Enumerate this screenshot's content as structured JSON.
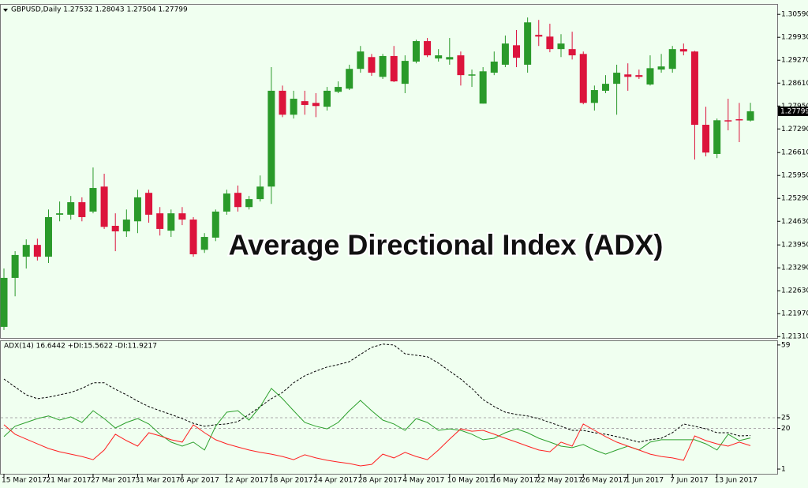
{
  "chart_data": {
    "type": "candlestick",
    "title": "GBPUSD,Daily  1.27532 1.28043 1.27504 1.27799",
    "overlay_title": "Average Directional Index (ADX)",
    "indicator_title": "ADX(14) 16.6442 +DI:15.5622 -DI:11.9217",
    "categories": [
      "15 Mar 2017",
      null,
      null,
      null,
      "21 Mar 2017",
      null,
      null,
      null,
      "27 Mar 2017",
      null,
      null,
      null,
      "31 Mar 2017",
      null,
      null,
      null,
      "6 Apr 2017",
      null,
      null,
      null,
      "12 Apr 2017",
      null,
      null,
      null,
      "18 Apr 2017",
      null,
      null,
      null,
      "24 Apr 2017",
      null,
      null,
      null,
      "28 Apr 2017",
      null,
      null,
      null,
      "4 May 2017",
      null,
      null,
      null,
      "10 May 2017",
      null,
      null,
      null,
      "16 May 2017",
      null,
      null,
      null,
      "22 May 2017",
      null,
      null,
      null,
      "26 May 2017",
      null,
      null,
      null,
      "1 Jun 2017",
      null,
      null,
      null,
      "7 Jun 2017",
      null,
      null,
      null,
      "13 Jun 2017",
      null,
      null,
      null
    ],
    "open": [
      1.2159,
      1.23,
      1.2361,
      1.2395,
      1.2361,
      1.2482,
      1.2482,
      1.2518,
      1.2491,
      1.2563,
      1.245,
      1.2434,
      1.2463,
      1.2545,
      1.2486,
      1.2436,
      1.2486,
      1.2468,
      1.2381,
      1.2416,
      1.2491,
      1.2545,
      1.2504,
      1.2527,
      1.2563,
      1.2839,
      1.277,
      1.2809,
      1.2804,
      1.2793,
      1.2836,
      1.2845,
      1.2902,
      1.2936,
      1.2879,
      1.2939,
      1.2859,
      1.2923,
      1.2982,
      1.2932,
      1.2929,
      1.2941,
      1.2884,
      1.2802,
      1.2891,
      1.2914,
      1.297,
      1.2914,
      1.3,
      1.2995,
      1.2959,
      1.2959,
      1.2945,
      1.2804,
      1.2839,
      1.2859,
      1.2886,
      1.2884,
      1.2857,
      1.29,
      1.2902,
      1.2959,
      1.2952,
      1.2741,
      1.2657,
      1.2754,
      1.2757,
      1.27532
    ],
    "high": [
      1.2327,
      1.2377,
      1.2411,
      1.2413,
      1.2497,
      1.252,
      1.2536,
      1.2532,
      1.2618,
      1.26,
      1.2486,
      1.2497,
      1.2554,
      1.2554,
      1.2504,
      1.2497,
      1.2504,
      1.2475,
      1.2429,
      1.2497,
      1.2554,
      1.2566,
      1.2536,
      1.2595,
      1.2907,
      1.2854,
      1.2839,
      1.2839,
      1.2832,
      1.285,
      1.2866,
      1.2914,
      1.2968,
      1.2945,
      1.2945,
      1.2968,
      1.2941,
      1.2986,
      1.2991,
      1.2959,
      1.2991,
      1.2952,
      1.29,
      1.2907,
      1.2952,
      1.2998,
      1.3014,
      1.305,
      1.3043,
      1.3032,
      1.3002,
      1.3009,
      1.2952,
      1.2854,
      1.2884,
      1.2914,
      1.2918,
      1.29,
      1.2941,
      1.2945,
      1.2968,
      1.2975,
      1.2954,
      1.2793,
      1.2759,
      1.2816,
      1.2804,
      1.28043
    ],
    "low": [
      1.215,
      1.2247,
      1.2327,
      1.235,
      1.2343,
      1.2463,
      1.2468,
      1.2463,
      1.2486,
      1.2441,
      1.2377,
      1.2418,
      1.2429,
      1.2459,
      1.2422,
      1.2418,
      1.2452,
      1.2361,
      1.2372,
      1.2406,
      1.2482,
      1.2491,
      1.2497,
      1.252,
      1.2513,
      1.2763,
      1.2759,
      1.277,
      1.2763,
      1.2782,
      1.2832,
      1.2841,
      1.2891,
      1.2882,
      1.2873,
      1.2864,
      1.2832,
      1.2918,
      1.2936,
      1.2923,
      1.2914,
      1.2854,
      1.285,
      1.2802,
      1.2884,
      1.2907,
      1.2907,
      1.2891,
      1.2968,
      1.295,
      1.2936,
      1.2929,
      1.28,
      1.2782,
      1.2832,
      1.277,
      1.2839,
      1.2873,
      1.2854,
      1.2891,
      1.2891,
      1.2941,
      1.2641,
      1.265,
      1.2645,
      1.2725,
      1.2691,
      1.27504
    ],
    "close": [
      1.23,
      1.2366,
      1.2395,
      1.2361,
      1.2475,
      1.2486,
      1.2518,
      1.2475,
      1.2559,
      1.2447,
      1.2434,
      1.2468,
      1.2532,
      1.2482,
      1.2441,
      1.2486,
      1.2468,
      1.2368,
      1.2418,
      1.2491,
      1.2543,
      1.2504,
      1.2527,
      1.2563,
      1.2839,
      1.277,
      1.2816,
      1.2798,
      1.2795,
      1.2839,
      1.285,
      1.2902,
      1.2952,
      1.2891,
      1.2939,
      1.2866,
      1.2925,
      1.2982,
      1.2941,
      1.2941,
      1.2936,
      1.2884,
      1.2886,
      1.2895,
      1.2923,
      1.2975,
      1.2934,
      1.3036,
      1.2995,
      1.2959,
      1.2975,
      1.2941,
      1.2804,
      1.2841,
      1.2859,
      1.2891,
      1.2879,
      1.2879,
      1.2904,
      1.2909,
      1.2959,
      1.2952,
      1.2741,
      1.2661,
      1.2754,
      1.2752,
      1.2754,
      1.27799
    ],
    "up_color": "#2a9a2a",
    "down_color": "#dc143c",
    "ylim": [
      1.2127,
      1.3089
    ],
    "yticks": [
      {
        "value": 1.3059,
        "label": "1.30590"
      },
      {
        "value": 1.2993,
        "label": "1.29930"
      },
      {
        "value": 1.2927,
        "label": "1.29270"
      },
      {
        "value": 1.2861,
        "label": "1.28610"
      },
      {
        "value": 1.2795,
        "label": "1.27950"
      },
      {
        "value": 1.2729,
        "label": "1.27290"
      },
      {
        "value": 1.2661,
        "label": "1.26610"
      },
      {
        "value": 1.2595,
        "label": "1.25950"
      },
      {
        "value": 1.2529,
        "label": "1.25290"
      },
      {
        "value": 1.2463,
        "label": "1.24630"
      },
      {
        "value": 1.2395,
        "label": "1.23950"
      },
      {
        "value": 1.2329,
        "label": "1.23290"
      },
      {
        "value": 1.2263,
        "label": "1.22630"
      },
      {
        "value": 1.2197,
        "label": "1.21970"
      },
      {
        "value": 1.2131,
        "label": "1.21310"
      }
    ],
    "y2lim": [
      -1.2,
      60.8
    ],
    "y2ticks": [
      59,
      25,
      20,
      1
    ],
    "levels": [
      25,
      20
    ],
    "series": [
      {
        "color": "#000000",
        "line_style": "dashed",
        "axis": "y2",
        "values": [
          43.1,
          39.4,
          35.7,
          33.9,
          34.6,
          35.7,
          36.8,
          38.7,
          41.3,
          41.3,
          38.3,
          35.7,
          32.8,
          30.2,
          28.3,
          26.5,
          24.6,
          22.4,
          21.0,
          21.7,
          22.1,
          23.2,
          26.5,
          30.2,
          33.9,
          36.8,
          41.3,
          44.6,
          46.8,
          48.7,
          49.8,
          51.2,
          54.6,
          57.9,
          59.4,
          59.0,
          54.9,
          54.2,
          53.5,
          50.5,
          46.8,
          43.1,
          38.7,
          33.5,
          30.2,
          27.6,
          26.5,
          25.8,
          24.6,
          22.8,
          21.0,
          19.1,
          19.1,
          18.0,
          17.3,
          16.2,
          15.0,
          13.6,
          14.7,
          15.4,
          18.0,
          22.1,
          21.0,
          19.8,
          18.0,
          18.0,
          16.5,
          16.6442
        ]
      },
      {
        "color": "#2ca02c",
        "line_style": "solid",
        "axis": "y2",
        "values": [
          16.2,
          21.0,
          22.8,
          24.6,
          25.8,
          23.9,
          25.4,
          22.8,
          28.3,
          24.6,
          20.2,
          22.8,
          24.6,
          22.1,
          17.3,
          13.6,
          11.7,
          13.6,
          9.9,
          21.0,
          27.6,
          28.3,
          23.9,
          30.2,
          38.7,
          33.9,
          28.3,
          22.8,
          21.0,
          19.8,
          22.8,
          28.3,
          33.1,
          28.3,
          23.9,
          22.1,
          19.1,
          24.6,
          22.8,
          19.1,
          19.8,
          19.1,
          17.3,
          14.7,
          15.4,
          18.0,
          19.8,
          18.0,
          15.4,
          13.6,
          11.7,
          11.0,
          12.5,
          9.9,
          8.0,
          9.9,
          11.7,
          9.9,
          13.6,
          14.7,
          14.7,
          14.7,
          14.7,
          12.8,
          9.9,
          17.3,
          14.3,
          15.5622
        ]
      },
      {
        "color": "#ff2020",
        "line_style": "solid",
        "axis": "y2",
        "values": [
          21.7,
          17.3,
          15.0,
          12.8,
          10.6,
          9.1,
          8.0,
          6.9,
          5.4,
          9.9,
          17.3,
          14.3,
          11.7,
          18.0,
          16.5,
          14.7,
          13.6,
          21.7,
          18.0,
          14.7,
          12.8,
          11.3,
          9.9,
          8.8,
          8.0,
          6.9,
          5.4,
          7.7,
          6.2,
          5.1,
          4.3,
          3.6,
          2.5,
          3.2,
          8.0,
          6.2,
          8.8,
          6.9,
          5.4,
          9.9,
          15.0,
          19.8,
          18.7,
          19.1,
          17.3,
          15.4,
          13.6,
          11.7,
          9.9,
          9.1,
          13.6,
          11.7,
          22.1,
          19.1,
          16.2,
          13.6,
          11.7,
          9.9,
          8.0,
          6.9,
          6.2,
          5.1,
          16.5,
          14.3,
          12.8,
          11.7,
          13.6,
          11.9217
        ]
      }
    ]
  }
}
